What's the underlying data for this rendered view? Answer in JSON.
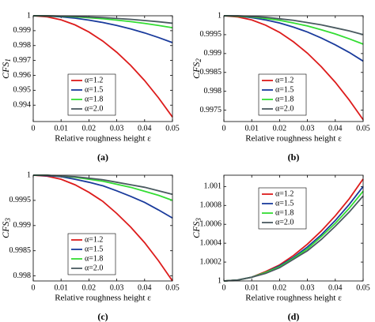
{
  "chart_data": [
    {
      "type": "line",
      "panel_label": "(a)",
      "ylabel": "CFS",
      "ylabel_subscript": "1",
      "xlabel": "Relative roughness height ε",
      "x": [
        0,
        0.005,
        0.01,
        0.015,
        0.02,
        0.025,
        0.03,
        0.035,
        0.04,
        0.045,
        0.05
      ],
      "xlim": [
        0,
        0.05
      ],
      "xticks": [
        0,
        0.01,
        0.02,
        0.03,
        0.04,
        0.05
      ],
      "ylim": [
        0.9929,
        1
      ],
      "yticks": [
        0.994,
        0.995,
        0.996,
        0.997,
        0.998,
        0.999,
        1
      ],
      "legend": "lower left",
      "series": [
        {
          "name": "α=1.2",
          "color": "#dd1c1c",
          "values": [
            1,
            0.99993,
            0.99973,
            0.99939,
            0.99891,
            0.9983,
            0.99755,
            0.99667,
            0.99565,
            0.99449,
            0.9932
          ]
        },
        {
          "name": "α=1.5",
          "color": "#1a3b9c",
          "values": [
            1,
            0.99998,
            0.99993,
            0.99984,
            0.99971,
            0.99955,
            0.99935,
            0.99912,
            0.99885,
            0.99854,
            0.9982
          ]
        },
        {
          "name": "α=1.8",
          "color": "#33dd33",
          "values": [
            1,
            0.99999,
            0.99997,
            0.99993,
            0.99987,
            0.9998,
            0.99971,
            0.99961,
            0.99949,
            0.99935,
            0.9992
          ]
        },
        {
          "name": "α=2.0",
          "color": "#4a5a60",
          "values": [
            1,
            1,
            0.99998,
            0.99996,
            0.99992,
            0.99988,
            0.99982,
            0.99976,
            0.99968,
            0.9996,
            0.9995
          ]
        }
      ]
    },
    {
      "type": "line",
      "panel_label": "(b)",
      "ylabel": "CFS",
      "ylabel_subscript": "2",
      "xlabel": "Relative roughness height ε",
      "x": [
        0,
        0.005,
        0.01,
        0.015,
        0.02,
        0.025,
        0.03,
        0.035,
        0.04,
        0.045,
        0.05
      ],
      "xlim": [
        0,
        0.05
      ],
      "xticks": [
        0,
        0.01,
        0.02,
        0.03,
        0.04,
        0.05
      ],
      "ylim": [
        0.9972,
        1
      ],
      "yticks": [
        0.9975,
        0.998,
        0.9985,
        0.999,
        0.9995,
        1
      ],
      "legend": "lower left",
      "series": [
        {
          "name": "α=1.2",
          "color": "#dd1c1c",
          "values": [
            1,
            0.99997,
            0.99989,
            0.99975,
            0.99956,
            0.99931,
            0.99901,
            0.99865,
            0.99824,
            0.99777,
            0.99725
          ]
        },
        {
          "name": "α=1.5",
          "color": "#1a3b9c",
          "values": [
            1,
            0.99999,
            0.99995,
            0.99989,
            0.99981,
            0.9997,
            0.99957,
            0.99941,
            0.99923,
            0.99903,
            0.9988
          ]
        },
        {
          "name": "α=1.8",
          "color": "#33dd33",
          "values": [
            1,
            0.99999,
            0.99997,
            0.99993,
            0.99988,
            0.99981,
            0.99973,
            0.99963,
            0.99952,
            0.99939,
            0.99925
          ]
        },
        {
          "name": "α=2.0",
          "color": "#4a5a60",
          "values": [
            1,
            1,
            0.99998,
            0.99996,
            0.99992,
            0.99988,
            0.99982,
            0.99976,
            0.99968,
            0.9996,
            0.9995
          ]
        }
      ]
    },
    {
      "type": "line",
      "panel_label": "(c)",
      "ylabel": "CFS",
      "ylabel_subscript": "3",
      "xlabel": "Relative roughness height ε",
      "x": [
        0,
        0.005,
        0.01,
        0.015,
        0.02,
        0.025,
        0.03,
        0.035,
        0.04,
        0.045,
        0.05
      ],
      "xlim": [
        0,
        0.05
      ],
      "xticks": [
        0,
        0.01,
        0.02,
        0.03,
        0.04,
        0.05
      ],
      "ylim": [
        0.9979,
        1
      ],
      "yticks": [
        0.998,
        0.9985,
        0.999,
        0.9995,
        1
      ],
      "legend": "lower left",
      "series": [
        {
          "name": "α=1.2",
          "color": "#dd1c1c",
          "values": [
            1,
            0.99998,
            0.99992,
            0.99981,
            0.99966,
            0.99948,
            0.99924,
            0.99897,
            0.99866,
            0.9983,
            0.9979
          ]
        },
        {
          "name": "α=1.5",
          "color": "#1a3b9c",
          "values": [
            1,
            0.99999,
            0.99997,
            0.99992,
            0.99986,
            0.99979,
            0.99969,
            0.99958,
            0.99946,
            0.99931,
            0.99915
          ]
        },
        {
          "name": "α=1.8",
          "color": "#33dd33",
          "values": [
            1,
            1,
            0.99998,
            0.99996,
            0.99992,
            0.99988,
            0.99982,
            0.99976,
            0.99968,
            0.9996,
            0.9995
          ]
        },
        {
          "name": "α=2.0",
          "color": "#4a5a60",
          "values": [
            1,
            1,
            0.99998,
            0.99997,
            0.99994,
            0.99991,
            0.99986,
            0.99981,
            0.99976,
            0.99969,
            0.99962
          ]
        }
      ]
    },
    {
      "type": "line",
      "panel_label": "(d)",
      "ylabel": "CFS",
      "ylabel_subscript": "3",
      "xlabel": "Relative roughness height ε",
      "x": [
        0,
        0.005,
        0.01,
        0.015,
        0.02,
        0.025,
        0.03,
        0.035,
        0.04,
        0.045,
        0.05
      ],
      "xlim": [
        0,
        0.05
      ],
      "xticks": [
        0,
        0.01,
        0.02,
        0.03,
        0.04,
        0.05
      ],
      "ylim": [
        1,
        1.00112
      ],
      "yticks": [
        1,
        1.0002,
        1.0004,
        1.0006,
        1.0008,
        1.001
      ],
      "legend": "upper left",
      "series": [
        {
          "name": "α=1.2",
          "color": "#dd1c1c",
          "values": [
            1,
            1.00001,
            1.00004,
            1.0001,
            1.00017,
            1.00027,
            1.00039,
            1.00053,
            1.00069,
            1.00087,
            1.00108
          ]
        },
        {
          "name": "α=1.5",
          "color": "#1a3b9c",
          "values": [
            1,
            1.00001,
            1.00004,
            1.00009,
            1.00016,
            1.00025,
            1.00036,
            1.00049,
            1.00064,
            1.00081,
            1.001
          ]
        },
        {
          "name": "α=1.8",
          "color": "#33dd33",
          "values": [
            1,
            1.00001,
            1.00004,
            1.00009,
            1.00015,
            1.00024,
            1.00034,
            1.00047,
            1.00061,
            1.00077,
            1.00095
          ]
        },
        {
          "name": "α=2.0",
          "color": "#4a5a60",
          "values": [
            1,
            1.00001,
            1.00004,
            1.00008,
            1.00014,
            1.00023,
            1.00032,
            1.00044,
            1.00058,
            1.00073,
            1.0009
          ]
        }
      ]
    }
  ]
}
